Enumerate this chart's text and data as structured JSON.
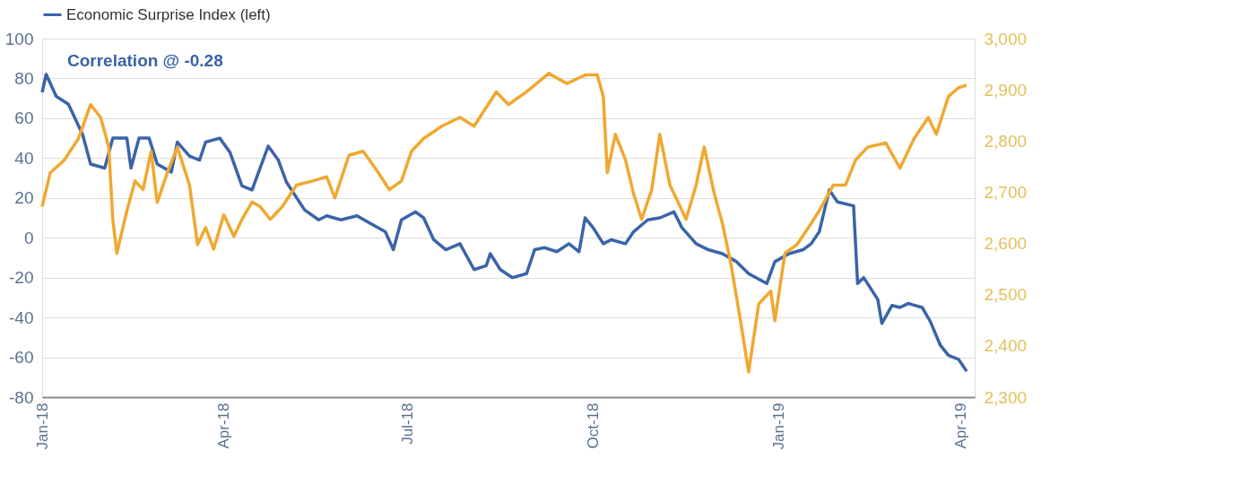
{
  "chart_data": {
    "type": "line",
    "annotations": [
      "Correlation @ -0.28"
    ],
    "xlim": [
      "2018-01-01",
      "2019-04-08"
    ],
    "xticks": [
      {
        "value": "2018-01-01",
        "label": "Jan-18"
      },
      {
        "value": "2018-04-01",
        "label": "Apr-18"
      },
      {
        "value": "2018-07-01",
        "label": "Jul-18"
      },
      {
        "value": "2018-10-01",
        "label": "Oct-18"
      },
      {
        "value": "2019-01-01",
        "label": "Jan-19"
      },
      {
        "value": "2019-04-01",
        "label": "Apr-19"
      }
    ],
    "ylim": [
      -80,
      100
    ],
    "yticks": [
      -80,
      -60,
      -40,
      -20,
      0,
      20,
      40,
      60,
      80,
      100
    ],
    "y2lim": [
      2300,
      3000
    ],
    "y2ticks": [
      {
        "value": 2300,
        "label": "2,300"
      },
      {
        "value": 2400,
        "label": "2,400"
      },
      {
        "value": 2500,
        "label": "2,500"
      },
      {
        "value": 2600,
        "label": "2,600"
      },
      {
        "value": 2700,
        "label": "2,700"
      },
      {
        "value": 2800,
        "label": "2,800"
      },
      {
        "value": 2900,
        "label": "2,900"
      },
      {
        "value": 3000,
        "label": "3,000"
      }
    ],
    "grid": "y",
    "legend": "top",
    "marker": "none",
    "line_style": "solid",
    "series": [
      {
        "name": "Economic Surprise Index (left)",
        "color": "#3a64a8",
        "x": [
          "2018-01-01",
          "2018-01-03",
          "2018-01-08",
          "2018-01-14",
          "2018-01-21",
          "2018-01-25",
          "2018-02-01",
          "2018-02-05",
          "2018-02-12",
          "2018-02-14",
          "2018-02-18",
          "2018-02-23",
          "2018-02-27",
          "2018-03-06",
          "2018-03-09",
          "2018-03-15",
          "2018-03-20",
          "2018-03-23",
          "2018-03-30",
          "2018-04-04",
          "2018-04-10",
          "2018-04-15",
          "2018-04-19",
          "2018-04-23",
          "2018-04-28",
          "2018-05-02",
          "2018-05-11",
          "2018-05-18",
          "2018-05-22",
          "2018-05-29",
          "2018-06-06",
          "2018-06-13",
          "2018-06-20",
          "2018-06-24",
          "2018-06-28",
          "2018-07-05",
          "2018-07-09",
          "2018-07-14",
          "2018-07-20",
          "2018-07-27",
          "2018-08-03",
          "2018-08-09",
          "2018-08-11",
          "2018-08-16",
          "2018-08-22",
          "2018-08-29",
          "2018-09-02",
          "2018-09-07",
          "2018-09-13",
          "2018-09-19",
          "2018-09-24",
          "2018-09-27",
          "2018-10-01",
          "2018-10-06",
          "2018-10-10",
          "2018-10-17",
          "2018-10-21",
          "2018-10-28",
          "2018-11-03",
          "2018-11-10",
          "2018-11-14",
          "2018-11-21",
          "2018-11-27",
          "2018-12-04",
          "2018-12-11",
          "2018-12-17",
          "2018-12-26",
          "2018-12-30",
          "2019-01-06",
          "2019-01-13",
          "2019-01-17",
          "2019-01-21",
          "2019-01-26",
          "2019-01-30",
          "2019-02-07",
          "2019-02-09",
          "2019-02-12",
          "2019-02-19",
          "2019-02-21",
          "2019-02-26",
          "2019-03-02",
          "2019-03-06",
          "2019-03-13",
          "2019-03-17",
          "2019-03-22",
          "2019-03-26",
          "2019-03-31",
          "2019-04-04"
        ],
        "values": [
          73,
          82,
          71,
          67,
          52,
          37,
          35,
          50,
          50,
          35,
          50,
          50,
          37,
          33,
          48,
          41,
          39,
          48,
          50,
          43,
          26,
          24,
          35,
          46,
          39,
          28,
          14,
          9,
          11,
          9,
          11,
          7,
          3,
          -6,
          9,
          13,
          10,
          -1,
          -6,
          -3,
          -16,
          -14,
          -8,
          -16,
          -20,
          -18,
          -6,
          -5,
          -7,
          -3,
          -7,
          10,
          5,
          -3,
          -1,
          -3,
          3,
          9,
          10,
          13,
          5,
          -3,
          -6,
          -8,
          -12,
          -18,
          -23,
          -12,
          -8,
          -6,
          -3,
          3,
          24,
          18,
          16,
          -23,
          -20,
          -31,
          -43,
          -34,
          -35,
          -33,
          -35,
          -42,
          -54,
          -59,
          -61,
          -67
        ]
      },
      {
        "color": "#f0a830",
        "axis": "y2",
        "x": [
          "2018-01-01",
          "2018-01-05",
          "2018-01-12",
          "2018-01-19",
          "2018-01-25",
          "2018-01-30",
          "2018-02-03",
          "2018-02-05",
          "2018-02-07",
          "2018-02-12",
          "2018-02-16",
          "2018-02-20",
          "2018-02-24",
          "2018-02-27",
          "2018-03-04",
          "2018-03-09",
          "2018-03-15",
          "2018-03-19",
          "2018-03-23",
          "2018-03-27",
          "2018-04-01",
          "2018-04-06",
          "2018-04-10",
          "2018-04-15",
          "2018-04-19",
          "2018-04-24",
          "2018-04-30",
          "2018-05-07",
          "2018-05-15",
          "2018-05-22",
          "2018-05-26",
          "2018-06-02",
          "2018-06-09",
          "2018-06-15",
          "2018-06-22",
          "2018-06-28",
          "2018-07-03",
          "2018-07-09",
          "2018-07-18",
          "2018-07-27",
          "2018-08-03",
          "2018-08-14",
          "2018-08-20",
          "2018-08-29",
          "2018-09-09",
          "2018-09-18",
          "2018-09-27",
          "2018-10-03",
          "2018-10-06",
          "2018-10-08",
          "2018-10-12",
          "2018-10-17",
          "2018-10-21",
          "2018-10-25",
          "2018-10-30",
          "2018-11-03",
          "2018-11-08",
          "2018-11-12",
          "2018-11-16",
          "2018-11-21",
          "2018-11-25",
          "2018-11-30",
          "2018-12-04",
          "2018-12-08",
          "2018-12-13",
          "2018-12-17",
          "2018-12-22",
          "2018-12-28",
          "2018-12-30",
          "2019-01-04",
          "2019-01-10",
          "2019-01-17",
          "2019-01-21",
          "2019-01-28",
          "2019-02-03",
          "2019-02-08",
          "2019-02-14",
          "2019-02-23",
          "2019-03-02",
          "2019-03-09",
          "2019-03-16",
          "2019-03-20",
          "2019-03-26",
          "2019-03-31",
          "2019-04-04"
        ],
        "values": [
          2672,
          2738,
          2763,
          2805,
          2871,
          2846,
          2788,
          2647,
          2581,
          2664,
          2722,
          2705,
          2780,
          2680,
          2738,
          2788,
          2714,
          2598,
          2631,
          2589,
          2656,
          2614,
          2647,
          2681,
          2672,
          2647,
          2672,
          2714,
          2722,
          2730,
          2689,
          2772,
          2780,
          2747,
          2705,
          2722,
          2780,
          2805,
          2829,
          2846,
          2829,
          2896,
          2871,
          2896,
          2932,
          2912,
          2929,
          2929,
          2887,
          2738,
          2813,
          2763,
          2697,
          2647,
          2705,
          2813,
          2714,
          2681,
          2647,
          2714,
          2788,
          2697,
          2639,
          2565,
          2449,
          2349,
          2482,
          2507,
          2449,
          2581,
          2598,
          2639,
          2664,
          2714,
          2714,
          2763,
          2788,
          2796,
          2747,
          2805,
          2846,
          2813,
          2887,
          2904,
          2909
        ]
      }
    ]
  }
}
